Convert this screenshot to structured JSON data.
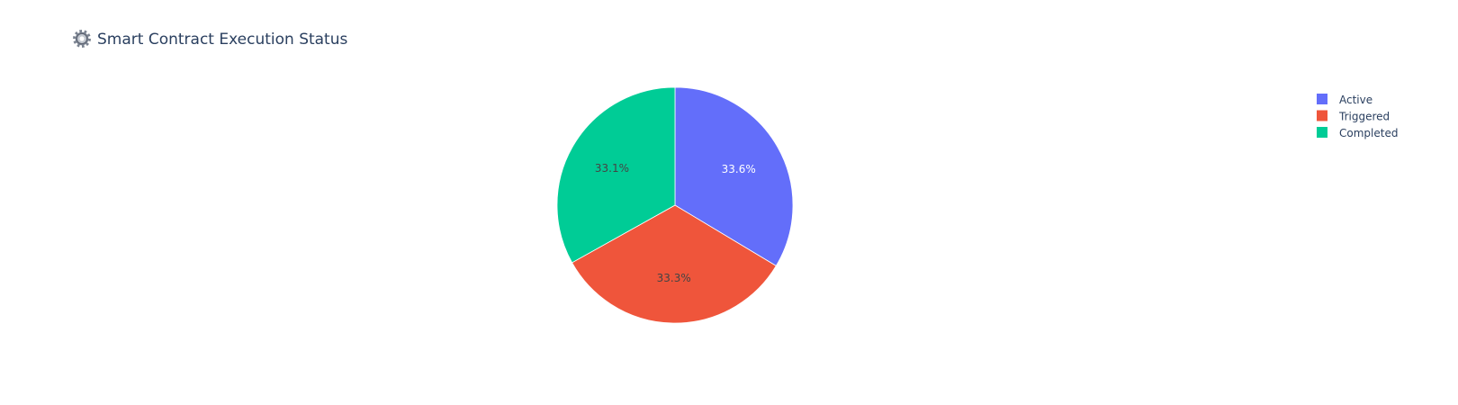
{
  "chart_data": {
    "type": "pie",
    "title": "Smart Contract Execution Status",
    "title_icon": "gear-icon",
    "labels": [
      "Active",
      "Triggered",
      "Completed"
    ],
    "values": [
      33.6,
      33.3,
      33.1
    ],
    "percent_labels": [
      "33.6%",
      "33.3%",
      "33.1%"
    ],
    "colors": [
      "#636efa",
      "#ef553b",
      "#00cc96"
    ],
    "label_text_colors": [
      "#ffffff",
      "#444444",
      "#444444"
    ],
    "direction": "clockwise",
    "start_angle": "top",
    "legend": {
      "position": "top-right",
      "entries": [
        "Active",
        "Triggered",
        "Completed"
      ]
    }
  }
}
